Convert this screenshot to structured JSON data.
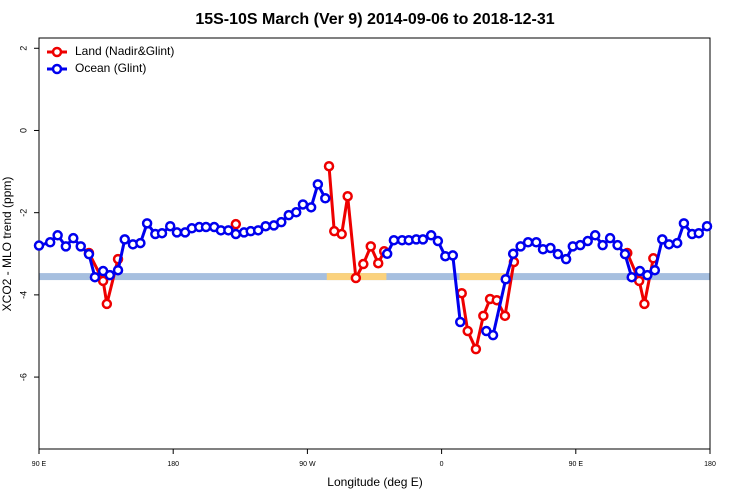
{
  "chart_data": {
    "type": "line",
    "title": "15S-10S March (Ver 9)   2014-09-06 to 2018-12-31",
    "x_label": "Longitude (deg E)",
    "y_label": "XCO2 - MLO trend (ppm)",
    "xlim": [
      90,
      540
    ],
    "xticks": [
      {
        "value": 90,
        "label": "90 E"
      },
      {
        "value": 180,
        "label": "180"
      },
      {
        "value": 270,
        "label": "90 W"
      },
      {
        "value": 360,
        "label": "0"
      },
      {
        "value": 450,
        "label": "90 E"
      },
      {
        "value": 540,
        "label": "180"
      }
    ],
    "ylim": [
      -7.75,
      2.25
    ],
    "yticks": [
      2,
      0,
      -2,
      -4,
      -6
    ],
    "legend": "top-left",
    "bands": [
      {
        "xlim": [
          90,
          540
        ],
        "ylim": [
          -3.64,
          -3.47
        ],
        "color": "#a6bfdf"
      },
      {
        "xlim": [
          283,
          323
        ],
        "ylim": [
          -3.64,
          -3.47
        ],
        "color": "#fbd27d"
      },
      {
        "xlim": [
          372,
          403
        ],
        "ylim": [
          -3.64,
          -3.47
        ],
        "color": "#fbd27d"
      }
    ],
    "series": [
      {
        "name": "Land (Nadir&Glint)",
        "color": "#ee0000",
        "x": [
          123.5,
          133,
          135.5,
          143,
          null,
          222,
          null,
          284.5,
          288,
          293,
          297,
          302.5,
          307.5,
          312.5,
          317.5,
          321.5,
          null,
          373.5,
          377.5,
          383,
          388,
          392.5,
          397,
          402.5,
          408.5,
          null,
          484.5,
          492.5,
          496,
          502
        ],
        "values": [
          -2.98,
          -3.66,
          -4.22,
          -3.13,
          null,
          -2.28,
          null,
          -0.87,
          -2.45,
          -2.52,
          -1.6,
          -3.59,
          -3.25,
          -2.82,
          -3.23,
          -2.94,
          null,
          -3.96,
          -4.88,
          -5.32,
          -4.51,
          -4.1,
          -4.13,
          -4.51,
          -3.2,
          null,
          -2.98,
          -3.66,
          -4.22,
          -3.11
        ]
      },
      {
        "name": "Ocean (Glint)",
        "color": "#0000ee",
        "x": [
          90,
          97.5,
          102.5,
          108,
          113,
          118,
          123.5,
          127.5,
          133,
          137.5,
          143,
          147.5,
          153,
          158,
          162.5,
          168,
          172.5,
          178,
          182.5,
          188,
          192.5,
          197.5,
          202,
          207.5,
          212,
          217,
          222,
          227.5,
          232,
          237,
          242,
          247.5,
          252.5,
          257.5,
          262.5,
          267,
          272.5,
          277,
          282,
          null,
          323.5,
          328,
          333.5,
          338,
          343,
          347.5,
          353,
          357.5,
          362.5,
          367.5,
          372.5,
          null,
          390,
          394.5,
          403,
          408,
          413,
          418,
          423.5,
          428,
          433,
          438,
          443.5,
          448,
          453,
          458,
          463,
          468,
          473,
          478,
          483,
          487.5,
          493,
          498,
          503,
          508,
          512.5,
          518,
          522.5,
          528,
          532.5,
          538
        ],
        "values": [
          -2.8,
          -2.72,
          -2.55,
          -2.82,
          -2.62,
          -2.82,
          -3.01,
          -3.57,
          -3.42,
          -3.52,
          -3.4,
          -2.65,
          -2.77,
          -2.74,
          -2.26,
          -2.52,
          -2.5,
          -2.33,
          -2.48,
          -2.48,
          -2.38,
          -2.35,
          -2.35,
          -2.35,
          -2.43,
          -2.43,
          -2.52,
          -2.48,
          -2.45,
          -2.43,
          -2.33,
          -2.31,
          -2.23,
          -2.06,
          -1.99,
          -1.8,
          -1.87,
          -1.31,
          -1.65,
          null,
          -3.0,
          -2.67,
          -2.67,
          -2.67,
          -2.65,
          -2.65,
          -2.55,
          -2.69,
          -3.06,
          -3.04,
          -4.66,
          null,
          -4.88,
          -4.98,
          -3.62,
          -3.0,
          -2.82,
          -2.72,
          -2.72,
          -2.89,
          -2.86,
          -3.01,
          -3.13,
          -2.82,
          -2.79,
          -2.69,
          -2.55,
          -2.79,
          -2.62,
          -2.79,
          -3.01,
          -3.57,
          -3.42,
          -3.52,
          -3.4,
          -2.65,
          -2.77,
          -2.74,
          -2.26,
          -2.52,
          -2.5,
          -2.33
        ]
      }
    ]
  }
}
